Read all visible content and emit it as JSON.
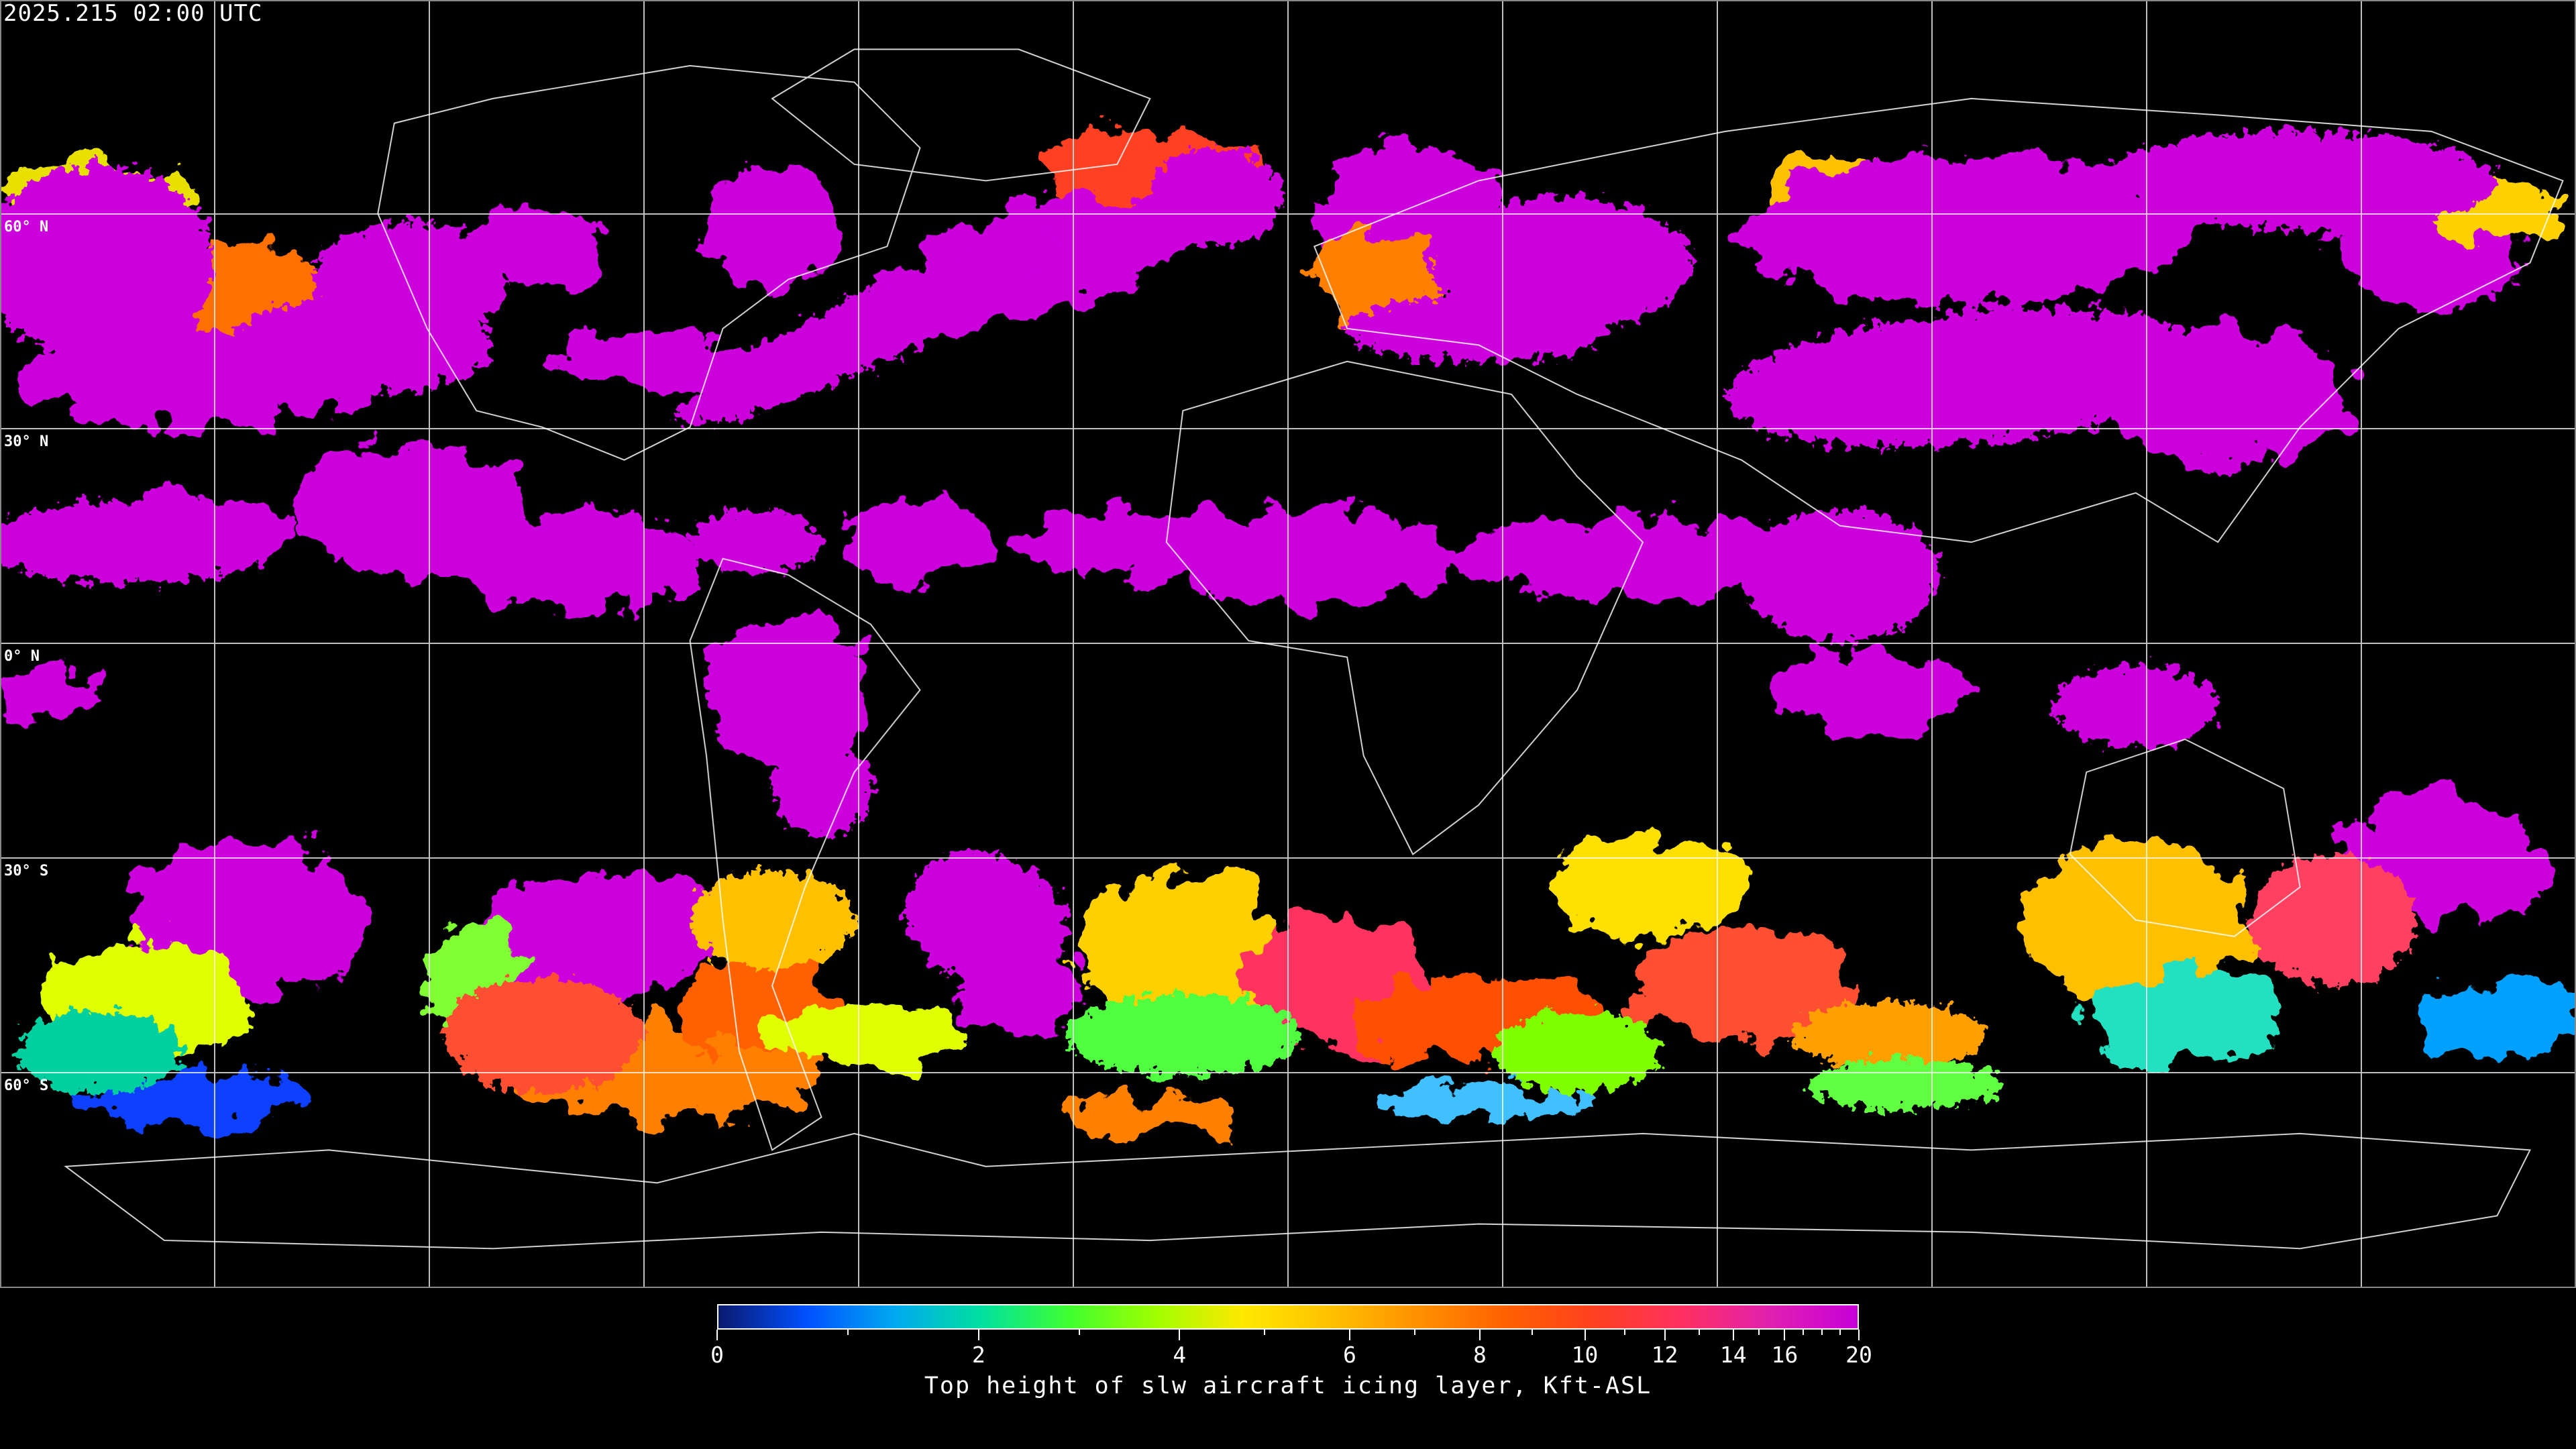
{
  "title": "2025.215 02:00 UTC",
  "latitude_labels": [
    "60° N",
    "30° N",
    "0° N",
    "30° S",
    "60° S"
  ],
  "colorbar": {
    "label": "Top height of slw aircraft icing layer, Kft-ASL",
    "min": 0,
    "max": 20,
    "tick_labels": [
      "0",
      "2",
      "4",
      "6",
      "8",
      "10",
      "12",
      "14",
      "16",
      "20"
    ],
    "minor_ticks": [
      1,
      3,
      5,
      7,
      9,
      11,
      13,
      15,
      17,
      18,
      19
    ],
    "colors": [
      "#0a1a6e",
      "#0050ff",
      "#00a8f0",
      "#00e0a0",
      "#40ff30",
      "#a0ff00",
      "#ffe800",
      "#ffc000",
      "#ff9000",
      "#ff6000",
      "#ff4020",
      "#ff3060",
      "#e020b0",
      "#c800d8"
    ]
  },
  "map": {
    "background": "#000000",
    "dominant_color": "#cc00dd",
    "grid_color": "#ffffff",
    "coastline_color": "#ffffff"
  }
}
